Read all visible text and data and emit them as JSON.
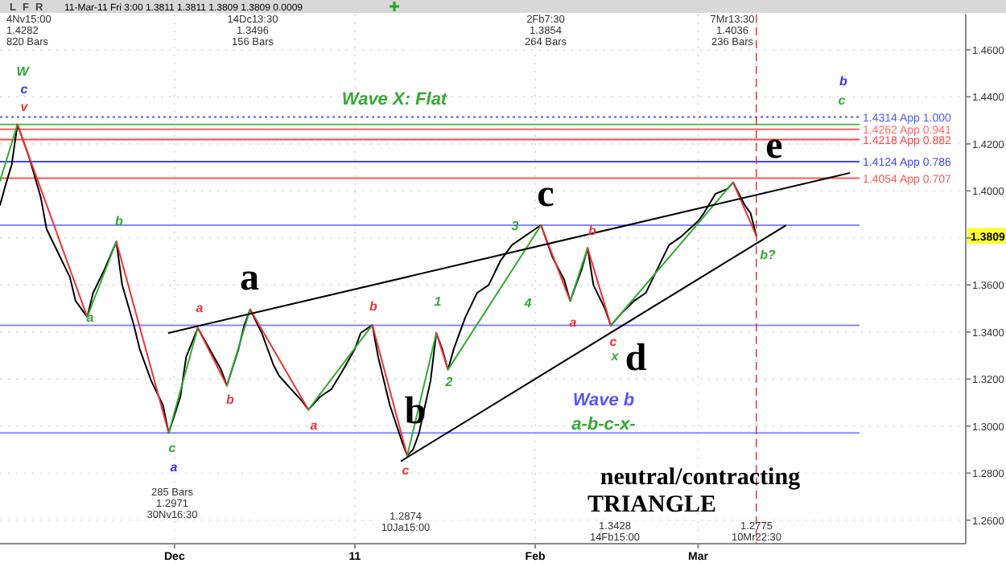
{
  "chart_data": {
    "type": "line",
    "subtitle": "11-Mar-11 Fri 3:00   1.3811   1.3811   1.3809   1.3809   0.0009",
    "xlim": [
      "2010-11-01",
      "2011-04-16"
    ],
    "xticks": [
      {
        "value": "2010-12-01",
        "label": "Dec"
      },
      {
        "value": "2011-01-01",
        "label": "11"
      },
      {
        "value": "2011-02-01",
        "label": "Feb"
      },
      {
        "value": "2011-03-01",
        "label": "Mar"
      }
    ],
    "ylim": [
      1.25,
      1.475
    ],
    "yticks": [
      {
        "value": 1.26,
        "label": "1.2600"
      },
      {
        "value": 1.28,
        "label": "1.2800"
      },
      {
        "value": 1.3,
        "label": "1.3000"
      },
      {
        "value": 1.32,
        "label": "1.3200"
      },
      {
        "value": 1.34,
        "label": "1.3400"
      },
      {
        "value": 1.36,
        "label": "1.3600"
      },
      {
        "value": 1.38,
        "label": null
      },
      {
        "value": 1.4,
        "label": "1.4000"
      },
      {
        "value": 1.42,
        "label": "1.4200"
      },
      {
        "value": 1.44,
        "label": "1.4400"
      },
      {
        "value": 1.46,
        "label": "1.4600"
      }
    ],
    "grid": true,
    "series": [
      {
        "color": "#000000",
        "x": [
          "2010-11-01",
          "2010-11-02",
          "2010-11-03",
          "2010-11-04",
          "2010-11-06",
          "2010-11-08",
          "2010-11-09",
          "2010-11-11",
          "2010-11-13",
          "2010-11-14",
          "2010-11-16",
          "2010-11-17",
          "2010-11-19",
          "2010-11-21",
          "2010-11-22",
          "2010-11-24",
          "2010-11-25",
          "2010-11-27",
          "2010-11-29",
          "2010-11-30",
          "2010-12-02",
          "2010-12-03",
          "2010-12-05",
          "2010-12-07",
          "2010-12-09",
          "2010-12-10",
          "2010-12-12",
          "2010-12-13",
          "2010-12-14",
          "2010-12-16",
          "2010-12-18",
          "2010-12-19",
          "2010-12-21",
          "2010-12-23",
          "2010-12-24",
          "2010-12-26",
          "2010-12-28",
          "2010-12-30",
          "2011-01-01",
          "2011-01-02",
          "2011-01-04",
          "2011-01-05",
          "2011-01-07",
          "2011-01-09",
          "2011-01-10",
          "2011-01-11",
          "2011-01-12",
          "2011-01-14",
          "2011-01-15",
          "2011-01-16",
          "2011-01-17",
          "2011-01-18",
          "2011-01-20",
          "2011-01-22",
          "2011-01-24",
          "2011-01-26",
          "2011-01-28",
          "2011-01-30",
          "2011-02-01",
          "2011-02-02",
          "2011-02-04",
          "2011-02-06",
          "2011-02-07",
          "2011-02-09",
          "2011-02-10",
          "2011-02-11",
          "2011-02-13",
          "2011-02-14",
          "2011-02-16",
          "2011-02-18",
          "2011-02-20",
          "2011-02-22",
          "2011-02-24",
          "2011-02-26",
          "2011-03-01",
          "2011-03-02",
          "2011-03-04",
          "2011-03-06",
          "2011-03-07",
          "2011-03-09",
          "2011-03-10",
          "2011-03-11"
        ],
        "values": [
          1.394,
          1.4029,
          1.411,
          1.4282,
          1.4144,
          1.3974,
          1.3838,
          1.3736,
          1.3634,
          1.3532,
          1.3464,
          1.3566,
          1.3668,
          1.3784,
          1.36,
          1.343,
          1.3328,
          1.3192,
          1.309,
          1.2971,
          1.3124,
          1.3294,
          1.3417,
          1.3328,
          1.324,
          1.3172,
          1.3328,
          1.343,
          1.3496,
          1.3396,
          1.326,
          1.3213,
          1.3158,
          1.3104,
          1.307,
          1.3124,
          1.3158,
          1.324,
          1.3328,
          1.3396,
          1.343,
          1.3294,
          1.309,
          1.2941,
          1.2874,
          1.29,
          1.2968,
          1.3192,
          1.3396,
          1.3328,
          1.324,
          1.3328,
          1.3464,
          1.3566,
          1.36,
          1.3702,
          1.377,
          1.3804,
          1.3838,
          1.3854,
          1.3716,
          1.3621,
          1.3532,
          1.3668,
          1.3757,
          1.36,
          1.3498,
          1.3428,
          1.3485,
          1.3532,
          1.3566,
          1.3668,
          1.377,
          1.3804,
          1.3872,
          1.3906,
          1.3988,
          1.4008,
          1.4036,
          1.394,
          1.3906,
          1.3809
        ]
      },
      {
        "color": "#33aa33",
        "x": [
          "2010-11-01",
          "2010-11-04"
        ],
        "values": [
          1.4042,
          1.4282
        ]
      },
      {
        "color": "#ee3333",
        "x": [
          "2010-11-04",
          "2010-11-16"
        ],
        "values": [
          1.4282,
          1.3464
        ]
      },
      {
        "color": "#33aa33",
        "x": [
          "2010-11-16",
          "2010-11-21"
        ],
        "values": [
          1.3464,
          1.3784
        ]
      },
      {
        "color": "#ee3333",
        "x": [
          "2010-11-21",
          "2010-11-30"
        ],
        "values": [
          1.3784,
          1.2971
        ]
      },
      {
        "color": "#33aa33",
        "x": [
          "2010-11-30",
          "2010-12-05"
        ],
        "values": [
          1.2971,
          1.3417
        ]
      },
      {
        "color": "#ee3333",
        "x": [
          "2010-12-05",
          "2010-12-10"
        ],
        "values": [
          1.3417,
          1.3172
        ]
      },
      {
        "color": "#33aa33",
        "x": [
          "2010-12-10",
          "2010-12-14"
        ],
        "values": [
          1.3172,
          1.3496
        ]
      },
      {
        "color": "#ee3333",
        "x": [
          "2010-12-14",
          "2010-12-24"
        ],
        "values": [
          1.3496,
          1.307
        ]
      },
      {
        "color": "#33aa33",
        "x": [
          "2010-12-24",
          "2011-01-04"
        ],
        "values": [
          1.307,
          1.343
        ]
      },
      {
        "color": "#ee3333",
        "x": [
          "2011-01-04",
          "2011-01-10"
        ],
        "values": [
          1.343,
          1.2874
        ]
      },
      {
        "color": "#33aa33",
        "x": [
          "2011-01-10",
          "2011-01-15"
        ],
        "values": [
          1.2874,
          1.3396
        ]
      },
      {
        "color": "#ee3333",
        "x": [
          "2011-01-15",
          "2011-01-17"
        ],
        "values": [
          1.3396,
          1.324
        ]
      },
      {
        "color": "#33aa33",
        "x": [
          "2011-01-17",
          "2011-02-02"
        ],
        "values": [
          1.324,
          1.3854
        ]
      },
      {
        "color": "#ee3333",
        "x": [
          "2011-02-02",
          "2011-02-07"
        ],
        "values": [
          1.3854,
          1.3532
        ]
      },
      {
        "color": "#33aa33",
        "x": [
          "2011-02-07",
          "2011-02-10"
        ],
        "values": [
          1.3532,
          1.3757
        ]
      },
      {
        "color": "#ee3333",
        "x": [
          "2011-02-10",
          "2011-02-14"
        ],
        "values": [
          1.3757,
          1.3428
        ]
      },
      {
        "color": "#33aa33",
        "x": [
          "2011-02-14",
          "2011-03-07"
        ],
        "values": [
          1.3428,
          1.4036
        ]
      },
      {
        "color": "#ee3333",
        "x": [
          "2011-03-07",
          "2011-03-11"
        ],
        "values": [
          1.4036,
          1.3809
        ]
      },
      {
        "color": "#000000",
        "x": [
          "2010-11-30",
          "2011-03-27"
        ],
        "values": [
          1.3396,
          1.4076
        ]
      },
      {
        "color": "#000000",
        "x": [
          "2011-01-09",
          "2011-03-16"
        ],
        "values": [
          1.2852,
          1.3852
        ]
      }
    ],
    "ref_lines": [
      {
        "axis": "y",
        "value": 1.4282,
        "color": "#55bb55"
      },
      {
        "axis": "y",
        "value": 1.4314,
        "label": "1.4314 App 1.000",
        "color": "#5555ff",
        "line_style": "dotted"
      },
      {
        "axis": "y",
        "value": 1.4262,
        "label": "1.4262 App 0.941",
        "color": "#ff6666"
      },
      {
        "axis": "y",
        "value": 1.4218,
        "label": "1.4218 App 0.882",
        "color": "#ff4444"
      },
      {
        "axis": "y",
        "value": 1.4124,
        "label": "1.4124 App 0.786",
        "color": "#4444ff"
      },
      {
        "axis": "y",
        "value": 1.4054,
        "label": "1.4054 App 0.707",
        "color": "#ff5555"
      },
      {
        "axis": "y",
        "value": 1.3854,
        "color": "#8888ff"
      },
      {
        "axis": "y",
        "value": 1.3428,
        "color": "#8888ff"
      },
      {
        "axis": "y",
        "value": 1.2971,
        "color": "#8888ff"
      },
      {
        "axis": "x",
        "value": "2011-03-11",
        "color": "#dd4444",
        "line_style": "dashed"
      }
    ],
    "annotations": [
      "L",
      "F",
      "R",
      {
        "text": "1.3809",
        "y": 1.3809
      },
      "4Nv15:00\n1.4282\n820 Bars",
      "14Dc13:30\n1.3496\n156 Bars",
      "2Fb7:30\n1.3854\n264 Bars",
      "7Mr13:30\n1.4036\n236 Bars",
      "285 Bars\n1.2971\n30Nv16:30",
      "1.2874\n10Ja15:00",
      "1.3428\n14Fb15:00",
      "1.2775\n10Mr22:30",
      "a",
      "b",
      "c",
      "d",
      "e",
      "neutral/contracting",
      "TRIANGLE",
      "Wave X: Flat",
      "Wave b",
      "a-b-c-x-",
      "b",
      "c",
      "W",
      "c",
      "v",
      "b",
      "a",
      "c",
      "a",
      "a",
      "b",
      "a",
      "b",
      "c",
      "1",
      "2",
      "3",
      "4",
      "b",
      "a",
      "c",
      "x",
      "b?"
    ]
  }
}
